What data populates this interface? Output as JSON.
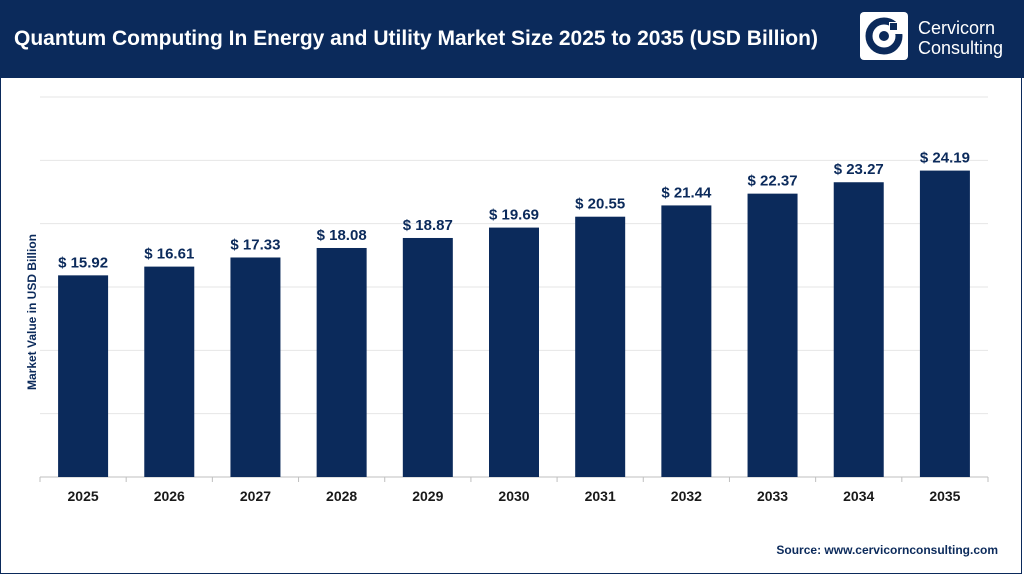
{
  "header": {
    "title": "Quantum Computing In Energy and Utility Market Size 2025 to 2035 (USD Billion)",
    "logo": {
      "line1": "Cervicorn",
      "line2": "Consulting"
    }
  },
  "source": "Source: www.cervicornconsulting.com",
  "colors": {
    "header_bg": "#0b2a5b",
    "bar": "#0b2a5b",
    "label": "#1a1a1a",
    "grid": "#e6e6e6"
  },
  "chart_data": {
    "type": "bar",
    "title": "Quantum Computing In Energy and Utility Market Size 2025 to 2035 (USD Billion)",
    "xlabel": "",
    "ylabel": "Market Value in USD Billion",
    "categories": [
      "2025",
      "2026",
      "2027",
      "2028",
      "2029",
      "2030",
      "2031",
      "2032",
      "2033",
      "2034",
      "2035"
    ],
    "values": [
      15.92,
      16.61,
      17.33,
      18.08,
      18.87,
      19.69,
      20.55,
      21.44,
      22.37,
      23.27,
      24.19
    ],
    "value_labels": [
      "$ 15.92",
      "$ 16.61",
      "$ 17.33",
      "$ 18.08",
      "$ 18.87",
      "$ 19.69",
      "$ 20.55",
      "$ 21.44",
      "$ 22.37",
      "$ 23.27",
      "$ 24.19"
    ],
    "ylim": [
      0,
      30
    ],
    "grid": true,
    "legend": "none"
  }
}
